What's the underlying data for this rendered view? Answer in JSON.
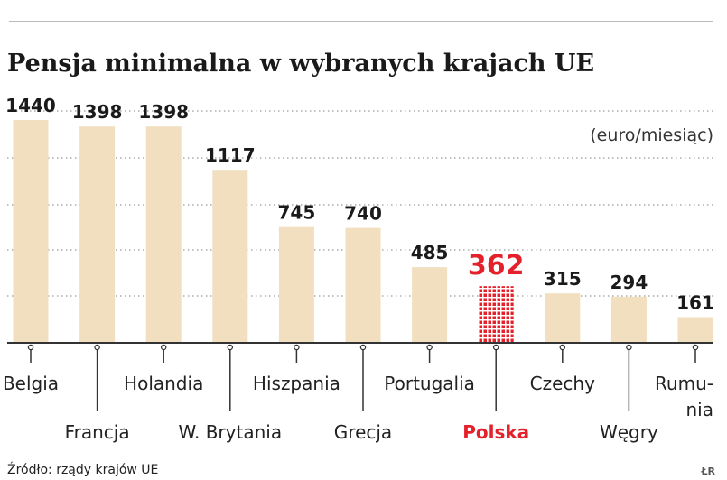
{
  "chart_data": {
    "type": "bar",
    "title": "Pensja minimalna w wybranych krajach UE",
    "unit_label": "(euro/miesiąc)",
    "categories": [
      "Belgia",
      "Francja",
      "Holandia",
      "W. Brytania",
      "Hiszpania",
      "Grecja",
      "Portugalia",
      "Polska",
      "Czechy",
      "Węgry",
      "Rumunia"
    ],
    "category_label_lines": [
      [
        "Belgia"
      ],
      [
        "Francja"
      ],
      [
        "Holandia"
      ],
      [
        "W. Brytania"
      ],
      [
        "Hiszpania"
      ],
      [
        "Grecja"
      ],
      [
        "Portugalia"
      ],
      [
        "Polska"
      ],
      [
        "Czechy"
      ],
      [
        "Węgry"
      ],
      [
        "Rumu-",
        "nia"
      ]
    ],
    "values": [
      1440,
      1398,
      1398,
      1117,
      745,
      740,
      485,
      362,
      315,
      294,
      161
    ],
    "value_labels": [
      "1440",
      "1398",
      "1398",
      "1117",
      "745",
      "740",
      "485",
      "362",
      "315",
      "294",
      "161"
    ],
    "highlight_category": "Polska",
    "ylim": [
      0,
      1440
    ],
    "grid": true,
    "xlabel": "",
    "ylabel": ""
  },
  "colors": {
    "bar": "#f2dfc0",
    "highlight": "#e4202a",
    "grid": "#9a9a9a",
    "axis": "#333333",
    "text": "#1a1a1a"
  },
  "source": "Źródło: rządy krajów UE",
  "initials": "ŁR"
}
